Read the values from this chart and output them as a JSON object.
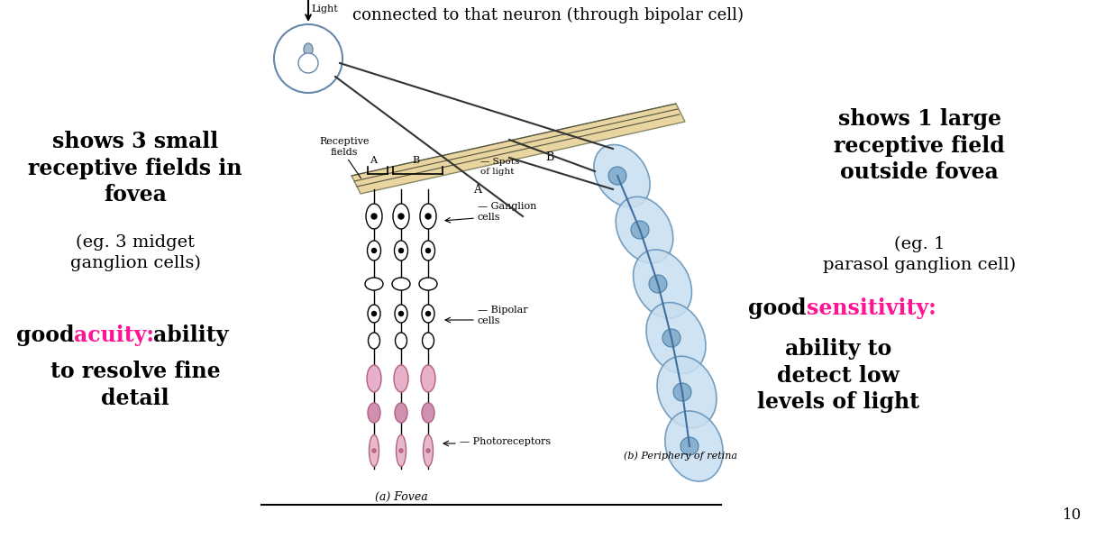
{
  "bg_color": "#ffffff",
  "text_color": "#000000",
  "highlight_color": "#ff1493",
  "page_number": "10",
  "title": "connected to that neuron (through bipolar cell)",
  "left1_bold": "shows 3 small\nreceptive fields in\nfovea",
  "left1_normal": "(eg. 3 midget\nganglion cells)",
  "left2_pre": "good ",
  "left2_colored": "acuity:",
  "left2_post": " ability\nto resolve fine\ndetail",
  "right1_bold": "shows 1 large\nreceptive field\noutside fovea",
  "right1_normal": "(eg. 1\nparasol ganglion cell)",
  "right2_pre": "good ",
  "right2_colored": "sensitivity:",
  "right2_post": "\nability to\ndetect low\nlevels of light",
  "label_receptive": "Receptive\nfields",
  "label_spots": "Spots\nof light",
  "label_ganglion": "Ganglion\ncells",
  "label_bipolar": "Bipolar\ncells",
  "label_photo": "Photoreceptors",
  "label_fovea": "(a) Fovea",
  "label_periphery": "(b) Periphery of retina",
  "label_light": "Light",
  "label_A": "A",
  "label_B": "B"
}
